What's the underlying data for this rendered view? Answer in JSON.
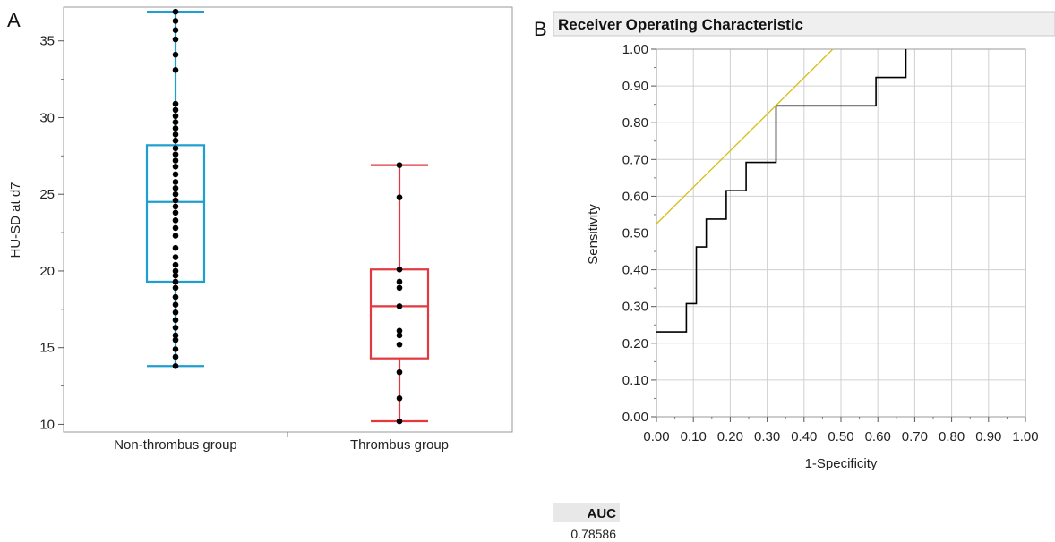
{
  "chart_data": [
    {
      "panel_label": "A",
      "type": "box",
      "ylabel": "HU-SD at d7",
      "ylim": [
        9.5,
        37.2
      ],
      "yticks": [
        10,
        15,
        20,
        25,
        30,
        35
      ],
      "categories": [
        "Non-thrombus group",
        "Thrombus group"
      ],
      "grid": false,
      "colors": [
        "#1f9fcf",
        "#e2393f"
      ],
      "boxes": [
        {
          "category": "Non-thrombus group",
          "min": 13.8,
          "q1": 19.3,
          "median": 24.5,
          "q3": 28.2,
          "max": 36.9
        },
        {
          "category": "Thrombus group",
          "min": 10.2,
          "q1": 14.3,
          "median": 17.7,
          "q3": 20.1,
          "max": 26.9
        }
      ],
      "points": [
        [
          36.9,
          36.3,
          35.7,
          35.1,
          34.1,
          33.1,
          30.9,
          30.5,
          30.1,
          29.7,
          29.3,
          28.9,
          28.5,
          28.0,
          27.6,
          27.2,
          26.8,
          26.3,
          25.8,
          25.4,
          25.0,
          24.6,
          24.2,
          23.8,
          23.3,
          22.8,
          22.3,
          21.5,
          20.9,
          20.4,
          20.0,
          19.7,
          19.3,
          18.9,
          18.3,
          17.8,
          17.3,
          16.8,
          16.3,
          15.8,
          15.5,
          14.9,
          14.4,
          13.8
        ],
        [
          26.9,
          24.8,
          20.1,
          19.3,
          18.9,
          17.7,
          16.1,
          15.8,
          15.2,
          13.4,
          11.7,
          10.2
        ]
      ]
    },
    {
      "panel_label": "B",
      "type": "line",
      "title": "Receiver Operating Characteristic",
      "xlabel": "1-Specificity",
      "ylabel": "Sensitivity",
      "xlim": [
        0,
        1
      ],
      "ylim": [
        0,
        1
      ],
      "xticks": [
        "0.00",
        "0.10",
        "0.20",
        "0.30",
        "0.40",
        "0.50",
        "0.60",
        "0.70",
        "0.80",
        "0.90",
        "1.00"
      ],
      "yticks": [
        "0.00",
        "0.10",
        "0.20",
        "0.30",
        "0.40",
        "0.50",
        "0.60",
        "0.70",
        "0.80",
        "0.90",
        "1.00"
      ],
      "grid": true,
      "series": [
        {
          "color": "#000000",
          "step": true,
          "x": [
            0.0,
            0.081,
            0.081,
            0.108,
            0.108,
            0.135,
            0.135,
            0.189,
            0.189,
            0.243,
            0.243,
            0.324,
            0.324,
            0.595,
            0.595,
            0.676,
            0.676
          ],
          "y": [
            0.231,
            0.231,
            0.308,
            0.308,
            0.462,
            0.462,
            0.538,
            0.538,
            0.615,
            0.615,
            0.692,
            0.692,
            0.846,
            0.846,
            0.923,
            0.923,
            1.0
          ]
        },
        {
          "color": "#d8c020",
          "step": false,
          "x": [
            0.0,
            0.478
          ],
          "y": [
            0.525,
            1.0
          ]
        }
      ],
      "auc_table": {
        "header": "AUC",
        "value": "0.78586"
      }
    }
  ]
}
